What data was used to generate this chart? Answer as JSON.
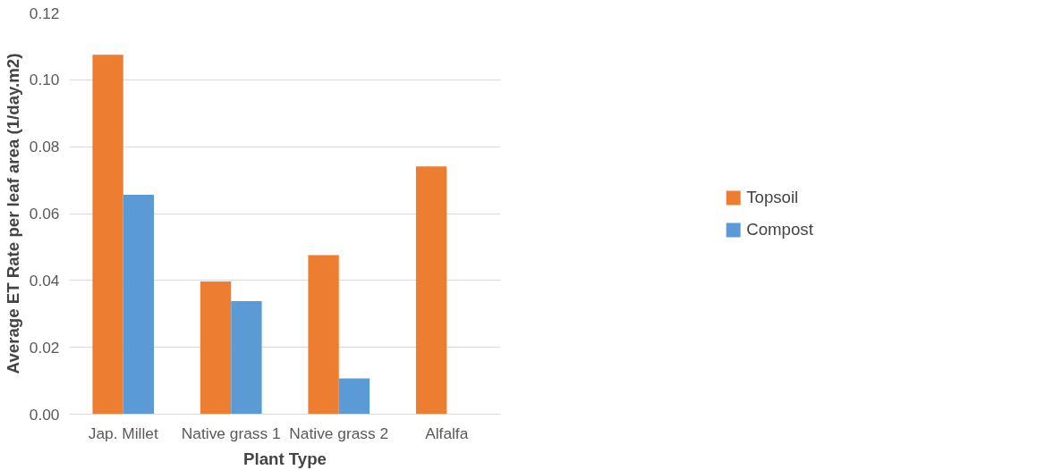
{
  "chart_data": {
    "type": "bar",
    "xlabel": "Plant Type",
    "ylabel": "Average ET Rate per leaf area (1/day.m2)",
    "categories": [
      "Jap. Millet",
      "Native grass 1",
      "Native grass 2",
      "Alfalfa"
    ],
    "series": [
      {
        "name": "Topsoil",
        "color": "#ed7d31",
        "values": [
          0.1075,
          0.0397,
          0.0476,
          0.0741
        ]
      },
      {
        "name": "Compost",
        "color": "#5b9bd5",
        "values": [
          0.0656,
          0.0338,
          0.0107,
          null
        ]
      }
    ],
    "ylim": [
      0,
      0.12
    ],
    "yticks": [
      {
        "value": 0,
        "label": "0.00"
      },
      {
        "value": 0.02,
        "label": "0.02"
      },
      {
        "value": 0.04,
        "label": "0.04"
      },
      {
        "value": 0.06,
        "label": "0.06"
      },
      {
        "value": 0.08,
        "label": "0.08"
      },
      {
        "value": 0.1,
        "label": "0.10"
      },
      {
        "value": 0.12,
        "label": "0.12"
      }
    ],
    "grid": "y",
    "legend": "right"
  }
}
